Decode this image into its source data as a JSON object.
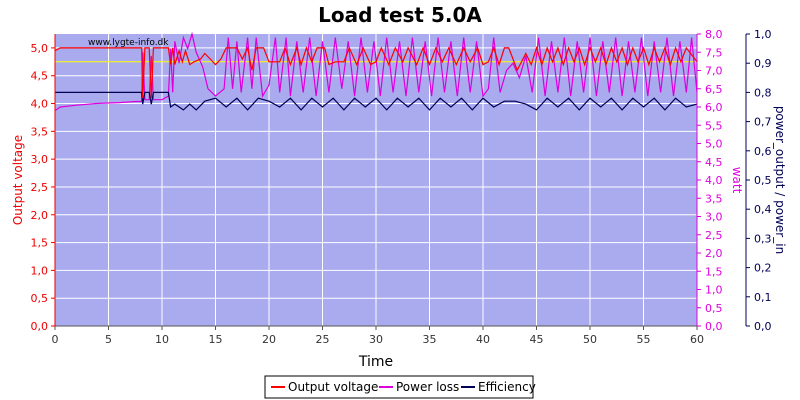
{
  "chart_data": {
    "type": "line",
    "title": "Load test 5.0A",
    "watermark": "www.lygte-info.dk",
    "xlabel": "Time",
    "xlim": [
      0,
      60
    ],
    "x_ticks": [
      "0",
      "5",
      "10",
      "15",
      "20",
      "25",
      "30",
      "35",
      "40",
      "45",
      "50",
      "55",
      "60"
    ],
    "axes": {
      "left": {
        "label": "Output voltage",
        "range": [
          0,
          5.25
        ],
        "color": "#ee0000",
        "ticks": [
          "0,0",
          "0,5",
          "1,0",
          "1,5",
          "2,0",
          "2,5",
          "3,0",
          "3,5",
          "4,0",
          "4,5",
          "5,0"
        ]
      },
      "right1": {
        "label": "watt",
        "range": [
          0,
          8.0
        ],
        "color": "#dd00dd",
        "ticks": [
          "0,0",
          "0,5",
          "1,0",
          "1,5",
          "2,0",
          "2,5",
          "3,0",
          "3,5",
          "4,0",
          "4,5",
          "5,0",
          "5,5",
          "6,0",
          "6,5",
          "7,0",
          "7,5",
          "8,0"
        ]
      },
      "right2": {
        "label": "power_output / power_in",
        "range": [
          0,
          1.0
        ],
        "color": "#000055",
        "ticks": [
          "0,0",
          "0,1",
          "0,2",
          "0,3",
          "0,4",
          "0,5",
          "0,6",
          "0,7",
          "0,8",
          "0,9",
          "1,0"
        ]
      }
    },
    "reference_line": {
      "axis": "left",
      "value": 4.75,
      "color": "#ffff00"
    },
    "series": [
      {
        "name": "Output voltage",
        "axis": "left",
        "color": "#ff0000",
        "points": [
          [
            0,
            4.95
          ],
          [
            0.5,
            5.0
          ],
          [
            3,
            5.0
          ],
          [
            6,
            5.0
          ],
          [
            7.5,
            5.0
          ],
          [
            8.1,
            5.0
          ],
          [
            8.2,
            4.1
          ],
          [
            8.4,
            5.0
          ],
          [
            8.8,
            5.0
          ],
          [
            9.0,
            4.1
          ],
          [
            9.2,
            5.0
          ],
          [
            10.0,
            5.0
          ],
          [
            10.6,
            5.0
          ],
          [
            10.8,
            4.7
          ],
          [
            11.0,
            5.0
          ],
          [
            11.2,
            4.7
          ],
          [
            11.6,
            4.95
          ],
          [
            11.9,
            4.75
          ],
          [
            12.2,
            4.95
          ],
          [
            12.6,
            4.7
          ],
          [
            13.0,
            4.75
          ],
          [
            13.6,
            4.8
          ],
          [
            14.0,
            4.9
          ],
          [
            14.5,
            4.8
          ],
          [
            15.0,
            4.7
          ],
          [
            15.5,
            4.8
          ],
          [
            16.0,
            5.0
          ],
          [
            17.0,
            5.0
          ],
          [
            17.5,
            4.8
          ],
          [
            18.0,
            5.0
          ],
          [
            18.4,
            4.6
          ],
          [
            18.8,
            5.0
          ],
          [
            19.5,
            5.0
          ],
          [
            20.0,
            4.75
          ],
          [
            21.0,
            4.75
          ],
          [
            21.5,
            5.0
          ],
          [
            22.0,
            4.7
          ],
          [
            22.6,
            5.0
          ],
          [
            23.0,
            4.7
          ],
          [
            23.5,
            5.0
          ],
          [
            24.0,
            4.75
          ],
          [
            24.5,
            5.0
          ],
          [
            25.2,
            5.0
          ],
          [
            25.6,
            4.7
          ],
          [
            26.2,
            4.75
          ],
          [
            27.0,
            4.75
          ],
          [
            27.5,
            5.0
          ],
          [
            28.2,
            4.7
          ],
          [
            28.8,
            5.0
          ],
          [
            29.5,
            4.7
          ],
          [
            30.0,
            4.75
          ],
          [
            30.5,
            5.0
          ],
          [
            31.2,
            4.7
          ],
          [
            31.8,
            5.0
          ],
          [
            32.5,
            4.75
          ],
          [
            33.0,
            5.0
          ],
          [
            33.8,
            4.7
          ],
          [
            34.4,
            5.0
          ],
          [
            35.0,
            4.7
          ],
          [
            35.6,
            5.0
          ],
          [
            36.2,
            4.75
          ],
          [
            36.8,
            5.0
          ],
          [
            37.5,
            4.7
          ],
          [
            38.2,
            5.0
          ],
          [
            38.8,
            4.75
          ],
          [
            39.5,
            5.0
          ],
          [
            40.0,
            4.7
          ],
          [
            40.5,
            4.75
          ],
          [
            41.0,
            5.0
          ],
          [
            41.5,
            4.7
          ],
          [
            42.0,
            5.0
          ],
          [
            42.4,
            5.0
          ],
          [
            42.8,
            4.8
          ],
          [
            43.2,
            4.6
          ],
          [
            44.0,
            4.9
          ],
          [
            44.5,
            4.7
          ],
          [
            45.0,
            5.0
          ],
          [
            45.5,
            4.7
          ],
          [
            46.0,
            5.0
          ],
          [
            46.5,
            4.75
          ],
          [
            47.0,
            5.0
          ],
          [
            47.5,
            4.7
          ],
          [
            48.0,
            5.0
          ],
          [
            48.5,
            4.75
          ],
          [
            49.0,
            5.0
          ],
          [
            49.5,
            4.7
          ],
          [
            50.0,
            5.0
          ],
          [
            50.5,
            4.75
          ],
          [
            51.0,
            5.0
          ],
          [
            51.5,
            4.7
          ],
          [
            52.0,
            5.0
          ],
          [
            52.5,
            4.75
          ],
          [
            53.0,
            5.0
          ],
          [
            53.5,
            4.7
          ],
          [
            54.0,
            5.0
          ],
          [
            54.5,
            4.75
          ],
          [
            55.0,
            5.0
          ],
          [
            55.5,
            4.7
          ],
          [
            56.0,
            5.0
          ],
          [
            56.5,
            4.75
          ],
          [
            57.0,
            5.0
          ],
          [
            57.5,
            4.7
          ],
          [
            58.0,
            5.0
          ],
          [
            58.5,
            4.75
          ],
          [
            59.0,
            5.0
          ],
          [
            60,
            4.75
          ]
        ]
      },
      {
        "name": "Power loss",
        "axis": "right1",
        "color": "#dd00dd",
        "points": [
          [
            0,
            5.9
          ],
          [
            0.5,
            6.0
          ],
          [
            2,
            6.05
          ],
          [
            4,
            6.1
          ],
          [
            6,
            6.12
          ],
          [
            7.5,
            6.15
          ],
          [
            8.1,
            6.15
          ],
          [
            8.2,
            7.5
          ],
          [
            8.4,
            6.2
          ],
          [
            8.8,
            6.2
          ],
          [
            9.0,
            7.4
          ],
          [
            9.2,
            6.2
          ],
          [
            10.0,
            6.2
          ],
          [
            10.6,
            6.3
          ],
          [
            10.8,
            7.6
          ],
          [
            11.0,
            6.4
          ],
          [
            11.2,
            7.8
          ],
          [
            11.6,
            7.2
          ],
          [
            12.0,
            7.9
          ],
          [
            12.4,
            7.6
          ],
          [
            12.8,
            8.0
          ],
          [
            13.2,
            7.5
          ],
          [
            13.8,
            7.1
          ],
          [
            14.3,
            6.5
          ],
          [
            15.0,
            6.3
          ],
          [
            15.8,
            6.5
          ],
          [
            16.2,
            7.9
          ],
          [
            16.6,
            6.5
          ],
          [
            17.0,
            7.8
          ],
          [
            17.4,
            6.4
          ],
          [
            18.0,
            7.9
          ],
          [
            18.4,
            6.5
          ],
          [
            18.8,
            7.9
          ],
          [
            19.4,
            6.3
          ],
          [
            20.0,
            6.6
          ],
          [
            20.6,
            7.9
          ],
          [
            21.0,
            6.4
          ],
          [
            21.6,
            7.9
          ],
          [
            22.0,
            6.3
          ],
          [
            22.6,
            7.8
          ],
          [
            23.2,
            6.4
          ],
          [
            23.8,
            7.9
          ],
          [
            24.4,
            6.3
          ],
          [
            25.0,
            7.8
          ],
          [
            25.6,
            6.4
          ],
          [
            26.2,
            7.9
          ],
          [
            26.8,
            6.5
          ],
          [
            27.4,
            7.8
          ],
          [
            28.0,
            6.3
          ],
          [
            28.6,
            7.9
          ],
          [
            29.2,
            6.4
          ],
          [
            29.8,
            7.8
          ],
          [
            30.4,
            6.3
          ],
          [
            31.0,
            7.9
          ],
          [
            31.6,
            6.4
          ],
          [
            32.2,
            7.8
          ],
          [
            32.8,
            6.3
          ],
          [
            33.4,
            7.9
          ],
          [
            34.0,
            6.4
          ],
          [
            34.6,
            7.8
          ],
          [
            35.2,
            6.3
          ],
          [
            35.8,
            7.9
          ],
          [
            36.4,
            6.4
          ],
          [
            37.0,
            7.8
          ],
          [
            37.6,
            6.3
          ],
          [
            38.2,
            7.9
          ],
          [
            38.8,
            6.4
          ],
          [
            39.4,
            7.8
          ],
          [
            40.0,
            6.3
          ],
          [
            40.5,
            6.5
          ],
          [
            41.0,
            7.9
          ],
          [
            41.6,
            6.4
          ],
          [
            42.2,
            7.0
          ],
          [
            42.8,
            7.2
          ],
          [
            43.4,
            6.8
          ],
          [
            44.0,
            7.4
          ],
          [
            44.6,
            6.4
          ],
          [
            45.2,
            7.9
          ],
          [
            45.8,
            6.3
          ],
          [
            46.4,
            7.8
          ],
          [
            47.0,
            6.4
          ],
          [
            47.6,
            7.9
          ],
          [
            48.2,
            6.3
          ],
          [
            48.8,
            7.8
          ],
          [
            49.4,
            6.4
          ],
          [
            50.0,
            7.9
          ],
          [
            50.6,
            6.3
          ],
          [
            51.2,
            7.8
          ],
          [
            51.8,
            6.4
          ],
          [
            52.4,
            7.9
          ],
          [
            53.0,
            6.3
          ],
          [
            53.6,
            7.8
          ],
          [
            54.2,
            6.4
          ],
          [
            54.8,
            7.9
          ],
          [
            55.4,
            6.3
          ],
          [
            56.0,
            7.8
          ],
          [
            56.6,
            6.4
          ],
          [
            57.2,
            7.9
          ],
          [
            57.8,
            6.3
          ],
          [
            58.4,
            7.8
          ],
          [
            59.0,
            6.4
          ],
          [
            59.5,
            7.9
          ],
          [
            60,
            6.4
          ]
        ]
      },
      {
        "name": "Efficiency",
        "axis": "right2",
        "color": "#000055",
        "points": [
          [
            0,
            0.8
          ],
          [
            1,
            0.8
          ],
          [
            3,
            0.8
          ],
          [
            6,
            0.8
          ],
          [
            8.1,
            0.8
          ],
          [
            8.2,
            0.76
          ],
          [
            8.4,
            0.8
          ],
          [
            8.8,
            0.8
          ],
          [
            9.0,
            0.76
          ],
          [
            9.2,
            0.8
          ],
          [
            10.6,
            0.8
          ],
          [
            10.8,
            0.75
          ],
          [
            11.2,
            0.76
          ],
          [
            12.0,
            0.74
          ],
          [
            12.6,
            0.76
          ],
          [
            13.2,
            0.74
          ],
          [
            14.0,
            0.77
          ],
          [
            15.0,
            0.78
          ],
          [
            16.0,
            0.75
          ],
          [
            17.0,
            0.78
          ],
          [
            18.0,
            0.74
          ],
          [
            19.0,
            0.78
          ],
          [
            20.0,
            0.77
          ],
          [
            21.0,
            0.75
          ],
          [
            22.0,
            0.78
          ],
          [
            23.0,
            0.74
          ],
          [
            24.0,
            0.78
          ],
          [
            25.0,
            0.75
          ],
          [
            26.0,
            0.78
          ],
          [
            27.0,
            0.74
          ],
          [
            28.0,
            0.78
          ],
          [
            29.0,
            0.75
          ],
          [
            30.0,
            0.78
          ],
          [
            31.0,
            0.74
          ],
          [
            32.0,
            0.78
          ],
          [
            33.0,
            0.75
          ],
          [
            34.0,
            0.78
          ],
          [
            35.0,
            0.74
          ],
          [
            36.0,
            0.78
          ],
          [
            37.0,
            0.75
          ],
          [
            38.0,
            0.78
          ],
          [
            39.0,
            0.74
          ],
          [
            40.0,
            0.78
          ],
          [
            41.0,
            0.75
          ],
          [
            42.0,
            0.77
          ],
          [
            43.0,
            0.77
          ],
          [
            44.0,
            0.76
          ],
          [
            45.0,
            0.74
          ],
          [
            46.0,
            0.78
          ],
          [
            47.0,
            0.75
          ],
          [
            48.0,
            0.78
          ],
          [
            49.0,
            0.74
          ],
          [
            50.0,
            0.78
          ],
          [
            51.0,
            0.75
          ],
          [
            52.0,
            0.78
          ],
          [
            53.0,
            0.74
          ],
          [
            54.0,
            0.78
          ],
          [
            55.0,
            0.75
          ],
          [
            56.0,
            0.78
          ],
          [
            57.0,
            0.74
          ],
          [
            58.0,
            0.78
          ],
          [
            59.0,
            0.75
          ],
          [
            60,
            0.76
          ]
        ]
      }
    ],
    "legend": {
      "placement": "bottom-center",
      "entries": [
        "Output voltage",
        "Power loss",
        "Efficiency"
      ]
    },
    "grid": true,
    "plot_background": "#aaaaee",
    "grid_color": "#ffffff"
  }
}
